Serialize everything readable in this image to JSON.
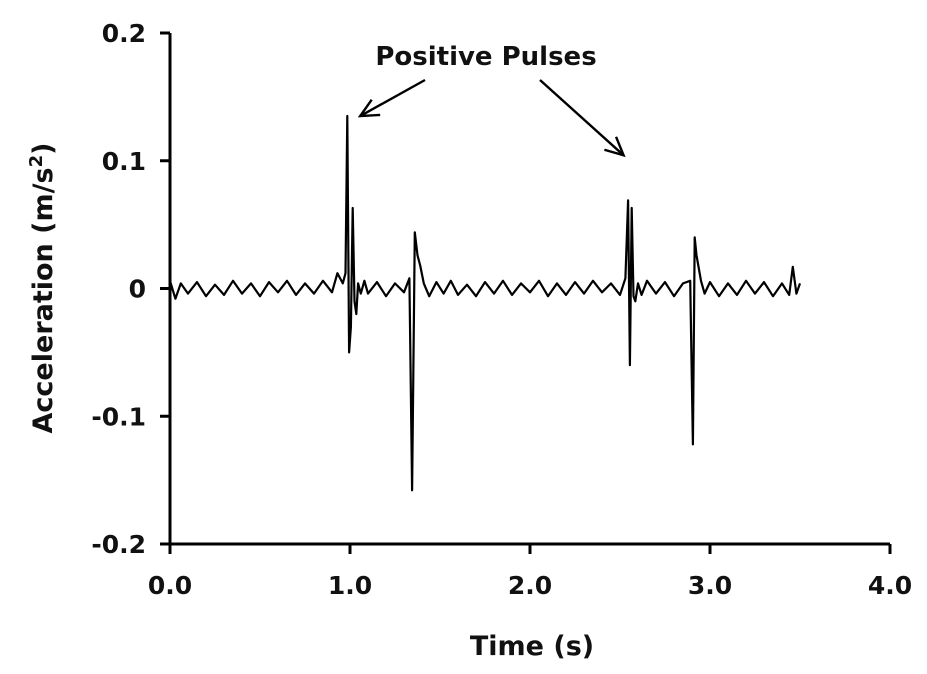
{
  "chart_data": {
    "type": "line",
    "title": "",
    "xlabel": "Time (s)",
    "ylabel_main": "Acceleration (m/s",
    "ylabel_sup": "2",
    "ylabel_end": ")",
    "xlim": [
      0,
      4
    ],
    "ylim": [
      -0.2,
      0.2
    ],
    "xticks": [
      0,
      1,
      2,
      3,
      4
    ],
    "xtick_labels": [
      "0.0",
      "1.0",
      "2.0",
      "3.0",
      "4.0"
    ],
    "yticks": [
      0.2,
      0.1,
      0,
      -0.1,
      -0.2
    ],
    "ytick_labels": [
      "0.2",
      "0.1",
      "0",
      "-0.1",
      "-0.2"
    ],
    "grid": false,
    "annotations": [
      {
        "text": "Positive Pulses",
        "arrows_point_to": [
          [
            0.99,
            0.135
          ],
          [
            2.52,
            0.098
          ]
        ]
      }
    ],
    "series": [
      {
        "x": [
          0.0,
          0.03,
          0.06,
          0.1,
          0.15,
          0.2,
          0.25,
          0.3,
          0.35,
          0.4,
          0.45,
          0.5,
          0.55,
          0.6,
          0.65,
          0.7,
          0.75,
          0.8,
          0.85,
          0.9,
          0.93,
          0.96,
          0.975,
          0.985,
          0.995,
          1.005,
          1.015,
          1.025,
          1.035,
          1.045,
          1.06,
          1.08,
          1.1,
          1.15,
          1.2,
          1.25,
          1.3,
          1.33,
          1.345,
          1.36,
          1.375,
          1.39,
          1.41,
          1.44,
          1.48,
          1.52,
          1.56,
          1.6,
          1.65,
          1.7,
          1.75,
          1.8,
          1.85,
          1.9,
          1.95,
          2.0,
          2.05,
          2.1,
          2.15,
          2.2,
          2.25,
          2.3,
          2.35,
          2.4,
          2.45,
          2.5,
          2.53,
          2.545,
          2.555,
          2.565,
          2.575,
          2.585,
          2.6,
          2.62,
          2.65,
          2.7,
          2.75,
          2.8,
          2.85,
          2.89,
          2.905,
          2.915,
          2.925,
          2.935,
          2.95,
          2.97,
          3.0,
          3.05,
          3.1,
          3.15,
          3.2,
          3.25,
          3.3,
          3.35,
          3.4,
          3.44,
          3.46,
          3.48,
          3.5
        ],
        "y": [
          0.006,
          -0.008,
          0.004,
          -0.004,
          0.005,
          -0.006,
          0.003,
          -0.005,
          0.006,
          -0.004,
          0.004,
          -0.006,
          0.005,
          -0.003,
          0.006,
          -0.005,
          0.004,
          -0.004,
          0.006,
          -0.003,
          0.012,
          0.004,
          0.012,
          0.135,
          -0.05,
          -0.03,
          0.063,
          -0.01,
          -0.02,
          0.004,
          -0.004,
          0.006,
          -0.004,
          0.005,
          -0.006,
          0.004,
          -0.003,
          0.008,
          -0.158,
          0.044,
          0.026,
          0.018,
          0.004,
          -0.006,
          0.005,
          -0.004,
          0.006,
          -0.005,
          0.003,
          -0.006,
          0.005,
          -0.004,
          0.006,
          -0.005,
          0.004,
          -0.003,
          0.006,
          -0.006,
          0.004,
          -0.005,
          0.005,
          -0.004,
          0.006,
          -0.003,
          0.004,
          -0.005,
          0.008,
          0.069,
          -0.06,
          0.063,
          -0.006,
          -0.01,
          0.004,
          -0.005,
          0.006,
          -0.004,
          0.005,
          -0.006,
          0.004,
          0.006,
          -0.122,
          0.04,
          0.026,
          0.018,
          0.006,
          -0.004,
          0.005,
          -0.006,
          0.004,
          -0.005,
          0.006,
          -0.004,
          0.005,
          -0.006,
          0.004,
          -0.005,
          0.017,
          -0.004,
          0.004
        ]
      }
    ]
  }
}
